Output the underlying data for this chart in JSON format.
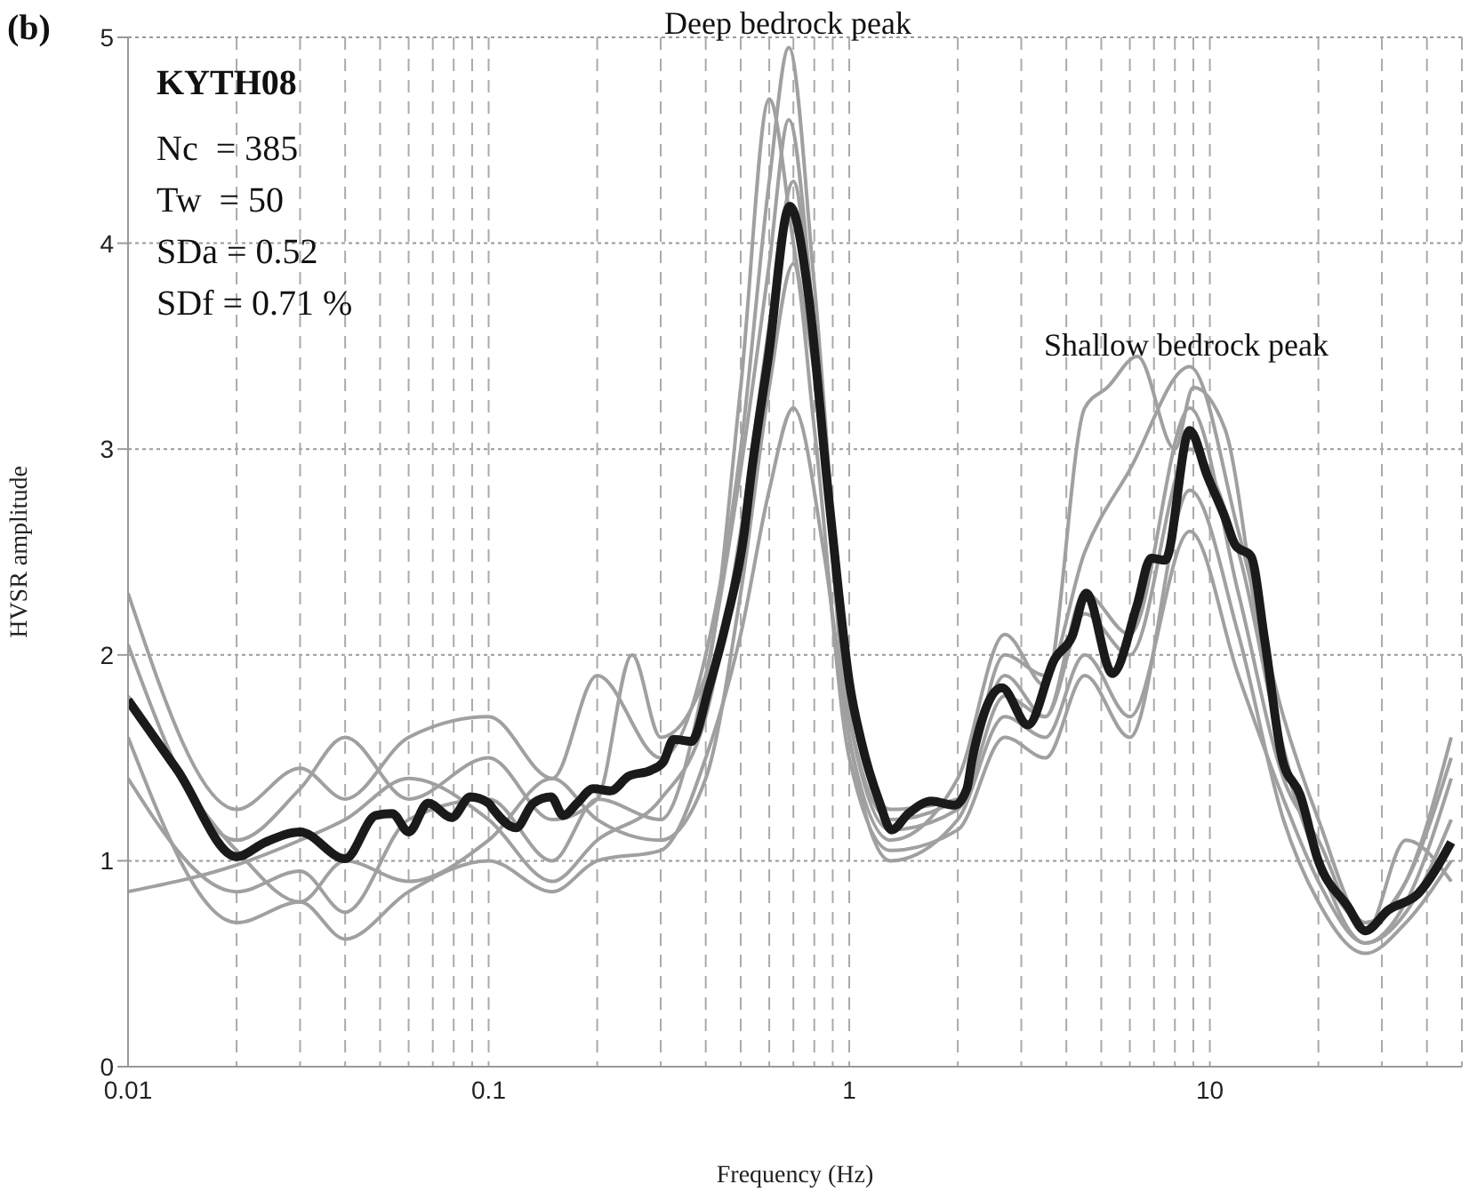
{
  "chart_data": {
    "type": "line",
    "title": "KYTH08",
    "xlabel": "Frequency (Hz)",
    "ylabel": "HVSR amplitude",
    "annotations": [
      "(b)",
      "Nc  = 385",
      "Tw  = 50",
      "SDa = 0.52",
      "SDf = 0.71 %",
      "Deep bedrock peak",
      "Shallow bedrock peak"
    ],
    "log": "x",
    "grid": true,
    "legend": false,
    "marker": "none",
    "line_style": "solid",
    "xlim": [
      0.01,
      50
    ],
    "ylim": [
      0,
      5
    ],
    "xticks": [
      0.01,
      {
        "value": 0.02,
        "label": null
      },
      {
        "value": 0.03,
        "label": null
      },
      {
        "value": 0.04,
        "label": null
      },
      {
        "value": 0.05,
        "label": null
      },
      {
        "value": 0.06,
        "label": null
      },
      {
        "value": 0.07,
        "label": null
      },
      {
        "value": 0.08,
        "label": null
      },
      {
        "value": 0.09,
        "label": null
      },
      0.1,
      {
        "value": 0.2,
        "label": null
      },
      {
        "value": 0.3,
        "label": null
      },
      {
        "value": 0.4,
        "label": null
      },
      {
        "value": 0.5,
        "label": null
      },
      {
        "value": 0.6,
        "label": null
      },
      {
        "value": 0.7,
        "label": null
      },
      {
        "value": 0.8,
        "label": null
      },
      {
        "value": 0.9,
        "label": null
      },
      1,
      {
        "value": 2,
        "label": null
      },
      {
        "value": 3,
        "label": null
      },
      {
        "value": 4,
        "label": null
      },
      {
        "value": 5,
        "label": null
      },
      {
        "value": 6,
        "label": null
      },
      {
        "value": 7,
        "label": null
      },
      {
        "value": 8,
        "label": null
      },
      {
        "value": 9,
        "label": null
      },
      10,
      {
        "value": 20,
        "label": null
      },
      {
        "value": 30,
        "label": null
      },
      {
        "value": 40,
        "label": null
      }
    ],
    "yticks": [
      0,
      1,
      2,
      3,
      4,
      5
    ],
    "series": [
      {
        "color": "#a0a0a0",
        "x": [
          0.01,
          0.02,
          0.03,
          0.04,
          0.06,
          0.1,
          0.15,
          0.2,
          0.3,
          0.4,
          0.5,
          0.6,
          0.68,
          0.8,
          1,
          1.3,
          2,
          2.7,
          3.5,
          4.5,
          6,
          8.8,
          12,
          16,
          20,
          27,
          35,
          46.7
        ],
        "values": [
          2.3,
          1.25,
          1.45,
          1.3,
          1.6,
          1.7,
          1.4,
          1.9,
          1.5,
          2.0,
          3.0,
          4.3,
          4.95,
          3.8,
          1.8,
          1.25,
          1.3,
          2.0,
          1.9,
          2.5,
          2.9,
          3.4,
          2.6,
          1.7,
          1.2,
          0.7,
          0.9,
          1.5
        ]
      },
      {
        "color": "#a0a0a0",
        "x": [
          0.01,
          0.02,
          0.03,
          0.04,
          0.06,
          0.1,
          0.15,
          0.2,
          0.25,
          0.3,
          0.4,
          0.5,
          0.6,
          0.7,
          0.85,
          1,
          1.3,
          2,
          2.7,
          3.5,
          4.5,
          5.2,
          6.3,
          8,
          9,
          11,
          14,
          20,
          27,
          35,
          46.7
        ],
        "values": [
          2.05,
          1.1,
          1.35,
          1.6,
          1.3,
          1.5,
          1.2,
          1.3,
          2.0,
          1.6,
          1.9,
          3.3,
          4.7,
          4.0,
          3.0,
          1.6,
          1.1,
          1.4,
          2.1,
          1.85,
          3.2,
          3.3,
          3.45,
          3.0,
          3.3,
          3.1,
          2.0,
          1.0,
          0.6,
          0.8,
          1.4
        ]
      },
      {
        "color": "#a0a0a0",
        "x": [
          0.01,
          0.02,
          0.03,
          0.04,
          0.06,
          0.1,
          0.15,
          0.2,
          0.3,
          0.4,
          0.5,
          0.6,
          0.7,
          0.85,
          1,
          1.3,
          2,
          2.7,
          3.5,
          4.5,
          6,
          8.8,
          12,
          16,
          20,
          27,
          35,
          46.7
        ],
        "values": [
          1.6,
          0.7,
          0.8,
          0.62,
          0.85,
          1.0,
          0.85,
          1.0,
          1.05,
          1.5,
          2.1,
          2.8,
          3.2,
          2.5,
          1.6,
          1.0,
          1.2,
          1.7,
          1.6,
          2.0,
          1.7,
          2.6,
          1.9,
          1.3,
          0.9,
          0.6,
          0.75,
          1.2
        ]
      },
      {
        "color": "#a0a0a0",
        "x": [
          0.01,
          0.02,
          0.03,
          0.04,
          0.06,
          0.1,
          0.15,
          0.2,
          0.3,
          0.4,
          0.5,
          0.6,
          0.7,
          0.8,
          1,
          1.3,
          2,
          2.7,
          3.5,
          4.5,
          6,
          8.8,
          12,
          16,
          20,
          27,
          35,
          46.7
        ],
        "values": [
          0.85,
          0.98,
          1.1,
          1.2,
          1.4,
          1.2,
          0.9,
          1.1,
          1.3,
          1.7,
          2.6,
          3.6,
          4.3,
          3.5,
          1.7,
          1.2,
          1.3,
          1.9,
          1.7,
          2.2,
          2.0,
          3.0,
          2.5,
          1.5,
          1.0,
          0.7,
          0.9,
          1.6
        ]
      },
      {
        "color": "#a0a0a0",
        "x": [
          0.01,
          0.02,
          0.03,
          0.04,
          0.06,
          0.1,
          0.15,
          0.2,
          0.3,
          0.4,
          0.5,
          0.6,
          0.68,
          0.8,
          1,
          1.3,
          2,
          2.7,
          3.5,
          4.5,
          6,
          8.8,
          12,
          16,
          20,
          27,
          35,
          46.7
        ],
        "values": [
          1.4,
          0.85,
          0.95,
          0.75,
          1.2,
          1.3,
          1.0,
          1.3,
          1.2,
          1.9,
          2.9,
          3.9,
          4.6,
          3.6,
          1.7,
          1.15,
          1.25,
          1.8,
          1.7,
          2.3,
          2.1,
          3.2,
          2.3,
          1.4,
          1.1,
          0.65,
          1.1,
          0.9
        ]
      },
      {
        "color": "#a0a0a0",
        "x": [
          0.01,
          0.02,
          0.03,
          0.04,
          0.06,
          0.1,
          0.15,
          0.2,
          0.3,
          0.4,
          0.5,
          0.6,
          0.7,
          0.8,
          1,
          1.3,
          2,
          2.7,
          3.5,
          4.5,
          6,
          8.8,
          12,
          16,
          20,
          27,
          35,
          46.7
        ],
        "values": [
          1.8,
          1.05,
          0.8,
          1.0,
          0.9,
          1.1,
          1.4,
          1.2,
          1.1,
          1.4,
          2.3,
          3.3,
          3.9,
          3.1,
          1.5,
          1.05,
          1.15,
          1.6,
          1.5,
          1.9,
          1.6,
          2.8,
          2.1,
          1.2,
          0.8,
          0.55,
          0.7,
          1.0
        ]
      },
      {
        "color": "#1a1a1a",
        "x": [
          0.01,
          0.0137,
          0.02,
          0.024,
          0.03,
          0.04,
          0.0486,
          0.054,
          0.06,
          0.068,
          0.079,
          0.089,
          0.1,
          0.103,
          0.119,
          0.133,
          0.149,
          0.161,
          0.176,
          0.195,
          0.218,
          0.244,
          0.282,
          0.305,
          0.326,
          0.365,
          0.408,
          0.456,
          0.511,
          0.534,
          0.597,
          0.684,
          0.773,
          0.865,
          0.935,
          1.0,
          1.08,
          1.21,
          1.31,
          1.46,
          1.69,
          1.96,
          2.12,
          2.19,
          2.65,
          3.13,
          3.71,
          4.15,
          4.54,
          5.37,
          6.28,
          6.87,
          7.52,
          8.79,
          9.84,
          11.0,
          11.8,
          13.0,
          14.2,
          15.9,
          17.8,
          19.9,
          24.1,
          27.0,
          31.2,
          37.8,
          46.7
        ],
        "values": [
          1.78,
          1.44,
          1.02,
          1.09,
          1.14,
          1.01,
          1.22,
          1.23,
          1.14,
          1.28,
          1.21,
          1.31,
          1.28,
          1.25,
          1.16,
          1.28,
          1.31,
          1.22,
          1.28,
          1.35,
          1.34,
          1.41,
          1.44,
          1.48,
          1.59,
          1.58,
          1.84,
          2.16,
          2.59,
          2.87,
          3.45,
          4.18,
          3.73,
          2.87,
          2.3,
          1.87,
          1.58,
          1.29,
          1.15,
          1.23,
          1.29,
          1.27,
          1.35,
          1.49,
          1.84,
          1.66,
          1.98,
          2.09,
          2.3,
          1.91,
          2.24,
          2.47,
          2.46,
          3.09,
          2.87,
          2.67,
          2.53,
          2.48,
          2.07,
          1.49,
          1.32,
          1.01,
          0.78,
          0.66,
          0.76,
          0.84,
          1.09
        ]
      }
    ]
  }
}
